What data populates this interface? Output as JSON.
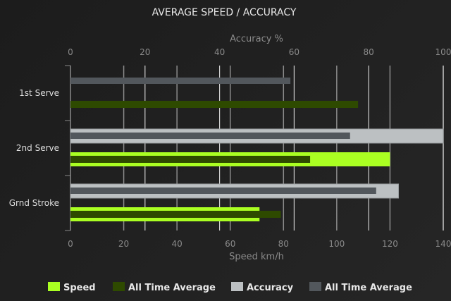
{
  "chart_data": {
    "type": "bar",
    "orientation": "horizontal",
    "title": "AVERAGE SPEED / ACCURACY",
    "categories": [
      "1st Serve",
      "2nd Serve",
      "Grnd Stroke"
    ],
    "top_axis": {
      "label": "Accuracy %",
      "range": [
        0,
        100
      ],
      "ticks": [
        0,
        20,
        40,
        60,
        80,
        100
      ]
    },
    "bottom_axis": {
      "label": "Speed km/h",
      "range": [
        0,
        140
      ],
      "ticks": [
        0,
        20,
        40,
        60,
        80,
        100,
        120,
        140
      ]
    },
    "grid": true,
    "legend_placement": "bottom",
    "series": [
      {
        "name": "Speed",
        "axis": "speed",
        "color": "#aaff22",
        "values": [
          null,
          120,
          71
        ]
      },
      {
        "name": "All Time Average",
        "axis": "speed",
        "color": "#2e4a00",
        "values": [
          108,
          90,
          79
        ]
      },
      {
        "name": "Accuracy",
        "axis": "accuracy",
        "color": "#bcc0c2",
        "values": [
          null,
          100,
          88
        ]
      },
      {
        "name": "All Time Average",
        "axis": "accuracy",
        "color": "#52575c",
        "values": [
          59,
          75,
          82
        ]
      }
    ]
  }
}
